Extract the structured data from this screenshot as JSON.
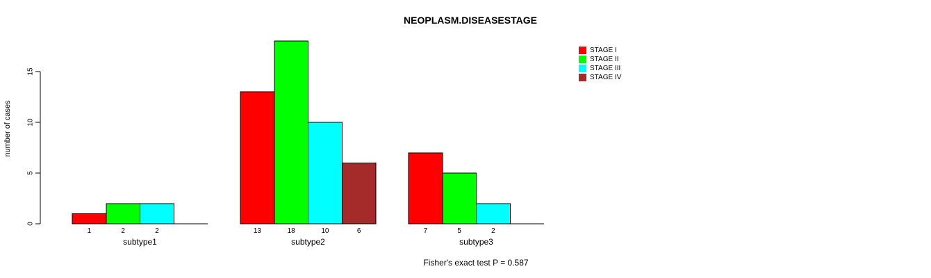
{
  "title": "NEOPLASM.DISEASESTAGE",
  "y_axis": {
    "label": "number of cases",
    "ticks": [
      0,
      5,
      10,
      15
    ]
  },
  "footnote": "Fisher's exact test P = 0.587",
  "legend": {
    "items": [
      {
        "label": "STAGE I",
        "color": "#ff0000"
      },
      {
        "label": "STAGE II",
        "color": "#00ff00"
      },
      {
        "label": "STAGE III",
        "color": "#00ffff"
      },
      {
        "label": "STAGE IV",
        "color": "#a52a2a"
      }
    ]
  },
  "chart_data": {
    "type": "bar",
    "title": "NEOPLASM.DISEASESTAGE",
    "xlabel": "",
    "ylabel": "number of cases",
    "categories": [
      "subtype1",
      "subtype2",
      "subtype3"
    ],
    "series": [
      {
        "name": "STAGE I",
        "color": "#ff0000",
        "values": [
          1,
          13,
          7
        ]
      },
      {
        "name": "STAGE II",
        "color": "#00ff00",
        "values": [
          2,
          18,
          5
        ]
      },
      {
        "name": "STAGE III",
        "color": "#00ffff",
        "values": [
          2,
          10,
          2
        ]
      },
      {
        "name": "STAGE IV",
        "color": "#a52a2a",
        "values": [
          0,
          6,
          0
        ]
      }
    ],
    "bar_value_labels": [
      [
        "1",
        "2",
        "2",
        ""
      ],
      [
        "13",
        "18",
        "10",
        "6"
      ],
      [
        "7",
        "5",
        "2",
        ""
      ]
    ],
    "yticks": [
      0,
      5,
      10,
      15
    ],
    "ylim": [
      0,
      18.7
    ],
    "grid": false,
    "legend_position": "top-right",
    "annotation": "Fisher's exact test P = 0.587",
    "notes": "grouped barplot, bars outlined black, zero-value bars not drawn but baseline slot reserved"
  }
}
